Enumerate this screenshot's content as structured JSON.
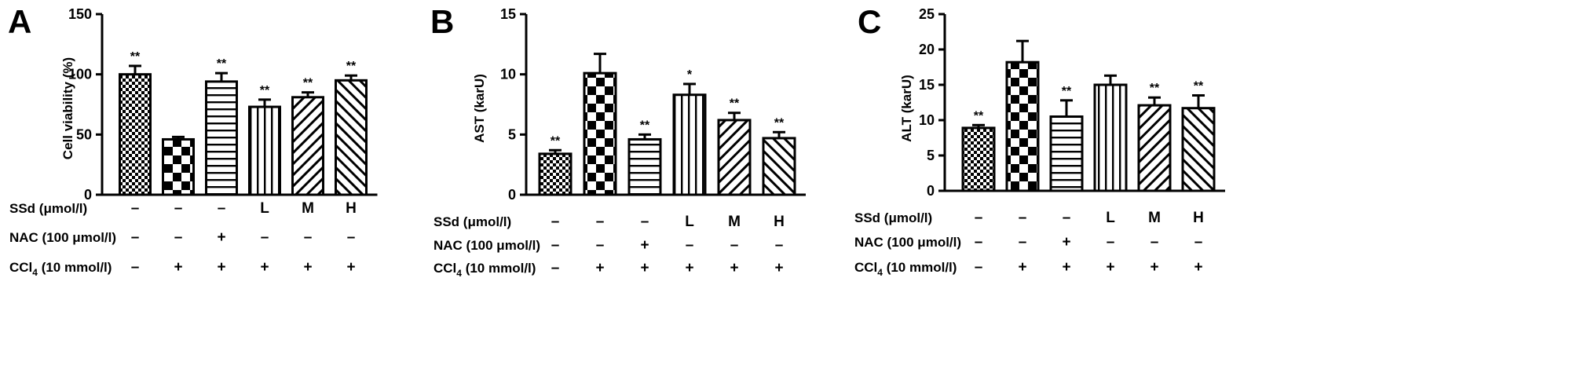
{
  "colors": {
    "ink": "#000000",
    "background": "#ffffff"
  },
  "chart_data": [
    {
      "panel": "A",
      "type": "bar",
      "ylabel": "Cell viability (%)",
      "ylim": [
        0,
        150
      ],
      "yticks": [
        0,
        50,
        100,
        150
      ],
      "values": [
        100,
        46,
        94,
        73,
        81,
        95
      ],
      "errors": [
        7,
        2,
        7,
        6,
        4,
        4
      ],
      "significance": [
        "**",
        "",
        "**",
        "**",
        "**",
        "**"
      ],
      "patterns": [
        "fine-checker",
        "large-checker",
        "horizontal",
        "vertical",
        "diagonal-up",
        "diagonal-down"
      ],
      "rows": [
        {
          "label": "SSd (μmol/l)",
          "values": [
            "–",
            "–",
            "–",
            "L",
            "M",
            "H"
          ]
        },
        {
          "label": "NAC (100 μmol/l)",
          "values": [
            "–",
            "–",
            "+",
            "–",
            "–",
            "–"
          ]
        },
        {
          "label": "CCl",
          "sub": "4",
          "suffix": " (10 mmol/l)",
          "values": [
            "–",
            "+",
            "+",
            "+",
            "+",
            "+"
          ]
        }
      ]
    },
    {
      "panel": "B",
      "type": "bar",
      "ylabel": "AST (karU)",
      "ylim": [
        0,
        15
      ],
      "yticks": [
        0,
        5,
        10,
        15
      ],
      "values": [
        3.4,
        10.1,
        4.6,
        8.3,
        6.2,
        4.7
      ],
      "errors": [
        0.3,
        1.6,
        0.4,
        0.9,
        0.6,
        0.5
      ],
      "significance": [
        "**",
        "",
        "**",
        "*",
        "**",
        "**"
      ],
      "patterns": [
        "fine-checker",
        "large-checker",
        "horizontal",
        "vertical",
        "diagonal-up",
        "diagonal-down"
      ],
      "rows": [
        {
          "label": "SSd (μmol/l)",
          "values": [
            "–",
            "–",
            "–",
            "L",
            "M",
            "H"
          ]
        },
        {
          "label": "NAC (100 μmol/l)",
          "values": [
            "–",
            "–",
            "+",
            "–",
            "–",
            "–"
          ]
        },
        {
          "label": "CCl",
          "sub": "4",
          "suffix": " (10 mmol/l)",
          "values": [
            "–",
            "+",
            "+",
            "+",
            "+",
            "+"
          ]
        }
      ]
    },
    {
      "panel": "C",
      "type": "bar",
      "ylabel": "ALT (karU)",
      "ylim": [
        0,
        25
      ],
      "yticks": [
        0,
        5,
        10,
        15,
        20,
        25
      ],
      "values": [
        8.9,
        18.2,
        10.5,
        15.0,
        12.1,
        11.7
      ],
      "errors": [
        0.4,
        3.0,
        2.3,
        1.3,
        1.1,
        1.8
      ],
      "significance": [
        "**",
        "",
        "**",
        "",
        "**",
        "**"
      ],
      "patterns": [
        "fine-checker",
        "large-checker",
        "horizontal",
        "vertical",
        "diagonal-up",
        "diagonal-down"
      ],
      "rows": [
        {
          "label": "SSd (μmol/l)",
          "values": [
            "–",
            "–",
            "–",
            "L",
            "M",
            "H"
          ]
        },
        {
          "label": "NAC (100 μmol/l)",
          "values": [
            "–",
            "–",
            "+",
            "–",
            "–",
            "–"
          ]
        },
        {
          "label": "CCl",
          "sub": "4",
          "suffix": " (10 mmol/l)",
          "values": [
            "–",
            "+",
            "+",
            "+",
            "+",
            "+"
          ]
        }
      ]
    }
  ]
}
